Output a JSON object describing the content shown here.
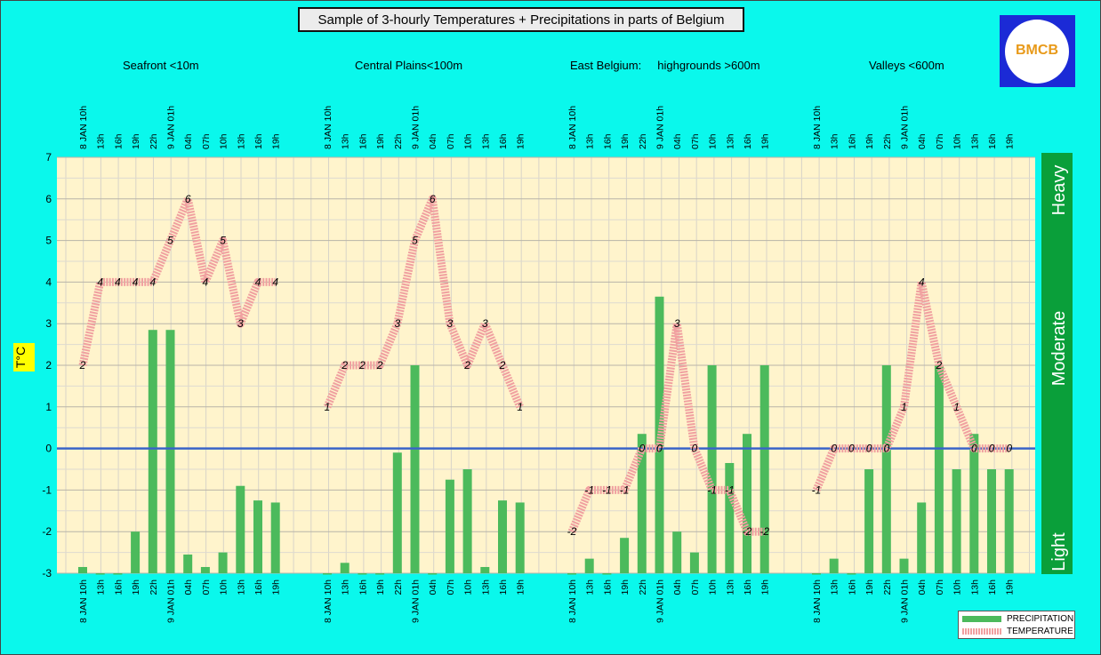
{
  "title": "Sample of 3-hourly Temperatures + Precipitations in parts of Belgium",
  "logo_text": "BMCB",
  "ylabel": "T°C",
  "regions": [
    "Seafront <10m",
    "Central Plains<100m",
    "East Belgium:     highgrounds >600m",
    "Valleys <600m"
  ],
  "intensity_labels": [
    "Heavy",
    "Moderate",
    "Light"
  ],
  "legend": {
    "precipitation": "PRECIPITATION",
    "temperature": "TEMPERATURE"
  },
  "colors": {
    "precip": "#4cba5c",
    "temp": "#f0a0a0",
    "zero_line": "#3a64c8",
    "plot_bg": "#fff4cc",
    "intensity_bar": "#0a9f3a",
    "background": "#0af8ec"
  },
  "chart_data": {
    "type": "bar+line",
    "ylim": [
      -3,
      7
    ],
    "yticks": [
      -3,
      -2,
      -1,
      0,
      1,
      2,
      3,
      4,
      5,
      6,
      7
    ],
    "grid": true,
    "legend_position": "bottom-right",
    "panels": [
      {
        "name": "Seafront <10m",
        "times": [
          "8 JAN 10h",
          "13h",
          "16h",
          "19h",
          "22h",
          "9 JAN 01h",
          "04h",
          "07h",
          "10h",
          "13h",
          "16h",
          "19h"
        ],
        "temperature": [
          2,
          4,
          4,
          4,
          4,
          5,
          6,
          4,
          5,
          3,
          4,
          4
        ],
        "precipitation": [
          -2.85,
          -3,
          -3,
          -2,
          2.85,
          2.85,
          -2.55,
          -2.85,
          -2.5,
          -0.9,
          -1.25,
          -1.3
        ]
      },
      {
        "name": "Central Plains<100m",
        "times": [
          "8 JAN 10h",
          "13h",
          "16h",
          "19h",
          "22h",
          "9 JAN 01h",
          "04h",
          "07h",
          "10h",
          "13h",
          "16h",
          "19h"
        ],
        "temperature": [
          1,
          2,
          2,
          2,
          3,
          5,
          6,
          3,
          2,
          3,
          2,
          1
        ],
        "precipitation": [
          -3,
          -2.75,
          -3,
          -3,
          -0.1,
          2,
          -3,
          -0.75,
          -0.5,
          -2.85,
          -1.25,
          -1.3
        ]
      },
      {
        "name": "East Belgium: highgrounds >600m",
        "times": [
          "8 JAN 10h",
          "13h",
          "16h",
          "19h",
          "22h",
          "9 JAN 01h",
          "04h",
          "07h",
          "10h",
          "13h",
          "16h",
          "19h"
        ],
        "temperature": [
          -2,
          -1,
          -1,
          -1,
          0,
          0,
          3,
          0,
          -1,
          -1,
          -2,
          -2
        ],
        "precipitation": [
          -3,
          -2.65,
          -3,
          -2.15,
          0.35,
          3.65,
          -2,
          -2.5,
          2,
          -0.35,
          0.35,
          2
        ]
      },
      {
        "name": "Valleys <600m",
        "times": [
          "8 JAN 10h",
          "13h",
          "16h",
          "19h",
          "22h",
          "9 JAN 01h",
          "04h",
          "07h",
          "10h",
          "13h",
          "16h",
          "19h"
        ],
        "temperature": [
          -1,
          0,
          0,
          0,
          0,
          1,
          4,
          2,
          1,
          0,
          0,
          0
        ],
        "precipitation": [
          -3,
          -2.65,
          -3,
          -0.5,
          2,
          -2.65,
          -1.3,
          2,
          -0.5,
          0.35,
          -0.5,
          -0.5
        ]
      }
    ]
  }
}
